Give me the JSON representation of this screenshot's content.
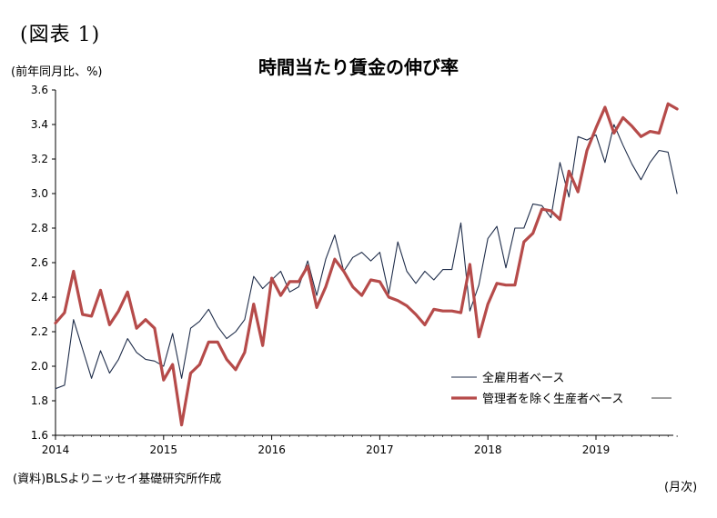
{
  "figure_label": "(図表 1)",
  "unit_label": "(前年同月比、%)",
  "source_note": "(資料)BLSよりニッセイ基礎研究所作成",
  "period_label": "(月次)",
  "chart_data": {
    "type": "line",
    "title": "時間当たり賃金の伸び率",
    "xlabel": "",
    "ylabel": "",
    "ylim": [
      1.6,
      3.6
    ],
    "ytick_step": 0.2,
    "yticks": [
      "1.6",
      "1.8",
      "2.0",
      "2.2",
      "2.4",
      "2.6",
      "2.8",
      "3.0",
      "3.2",
      "3.4",
      "3.6"
    ],
    "x_start": "2014-01",
    "x_months": 70,
    "xticks": [
      "2014",
      "2015",
      "2016",
      "2017",
      "2018",
      "2019"
    ],
    "grid": false,
    "legend_position": "lower-right",
    "series": [
      {
        "name": "全雇用者ベース",
        "color": "#1f2d4a",
        "width": 1.1,
        "values": [
          1.87,
          1.89,
          2.27,
          2.1,
          1.93,
          2.09,
          1.96,
          2.04,
          2.16,
          2.08,
          2.04,
          2.03,
          2.0,
          2.19,
          1.93,
          2.22,
          2.26,
          2.33,
          2.23,
          2.16,
          2.2,
          2.27,
          2.52,
          2.45,
          2.5,
          2.55,
          2.43,
          2.46,
          2.61,
          2.41,
          2.62,
          2.76,
          2.55,
          2.63,
          2.66,
          2.61,
          2.66,
          2.42,
          2.72,
          2.55,
          2.48,
          2.55,
          2.5,
          2.56,
          2.56,
          2.83,
          2.32,
          2.47,
          2.74,
          2.81,
          2.57,
          2.8,
          2.8,
          2.94,
          2.93,
          2.86,
          3.18,
          2.98,
          3.33,
          3.31,
          3.34,
          3.18,
          3.4,
          3.28,
          3.17,
          3.08,
          3.18,
          3.25,
          3.24,
          3.0
        ]
      },
      {
        "name": "管理者を除く生産者ベース",
        "color": "#b64b4a",
        "width": 3.2,
        "values": [
          2.25,
          2.31,
          2.55,
          2.3,
          2.29,
          2.44,
          2.24,
          2.32,
          2.43,
          2.22,
          2.27,
          2.22,
          1.92,
          2.01,
          1.66,
          1.96,
          2.01,
          2.14,
          2.14,
          2.04,
          1.98,
          2.08,
          2.36,
          2.12,
          2.51,
          2.41,
          2.49,
          2.49,
          2.58,
          2.34,
          2.46,
          2.62,
          2.55,
          2.46,
          2.41,
          2.5,
          2.49,
          2.4,
          2.38,
          2.35,
          2.3,
          2.24,
          2.33,
          2.32,
          2.32,
          2.31,
          2.59,
          2.17,
          2.36,
          2.48,
          2.47,
          2.47,
          2.72,
          2.77,
          2.91,
          2.9,
          2.85,
          3.13,
          3.01,
          3.25,
          3.38,
          3.5,
          3.35,
          3.44,
          3.39,
          3.33,
          3.36,
          3.35,
          3.52,
          3.49
        ]
      }
    ]
  }
}
